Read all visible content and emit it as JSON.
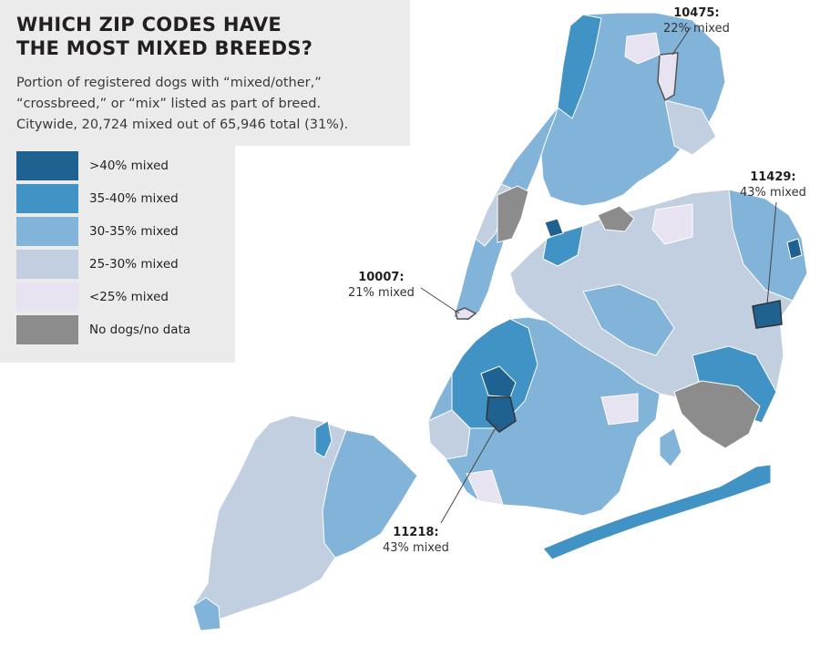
{
  "title_lines": [
    "WHICH ZIP CODES HAVE",
    "THE MOST MIXED BREEDS?"
  ],
  "subtitle_lines": [
    "Portion of registered dogs with “mixed/other,”",
    "“crossbreed,” or “mix” listed as part of breed.",
    "Citywide, 20,724 mixed out of 65,946 total (31%)."
  ],
  "legend": [
    {
      "label": ">40% mixed",
      "color": "#1f6291"
    },
    {
      "label": "35-40% mixed",
      "color": "#4193c6"
    },
    {
      "label": "30-35% mixed",
      "color": "#82b3d8"
    },
    {
      "label": "25-30% mixed",
      "color": "#c2cfe0"
    },
    {
      "label": "<25% mixed",
      "color": "#e8e3f1"
    },
    {
      "label": "No dogs/no data",
      "color": "#8c8c8c"
    }
  ],
  "callouts": [
    {
      "zip": "10475:",
      "value": "22% mixed"
    },
    {
      "zip": "11429:",
      "value": "43% mixed"
    },
    {
      "zip": "10007:",
      "value": "21% mixed"
    },
    {
      "zip": "11218:",
      "value": "43% mixed"
    }
  ]
}
